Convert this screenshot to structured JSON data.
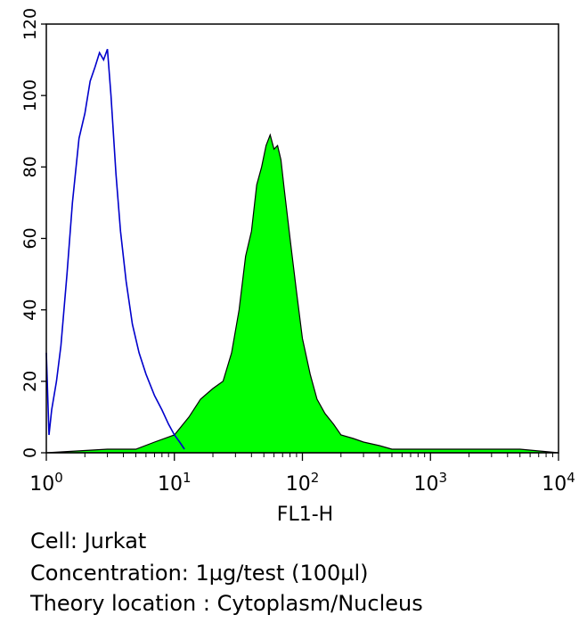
{
  "chart_data": {
    "type": "area",
    "xlabel": "FL1-H",
    "ylabel": "",
    "x_scale": "log",
    "xlim": [
      1,
      10000
    ],
    "ylim": [
      0,
      120
    ],
    "y_ticks": [
      0,
      20,
      40,
      60,
      80,
      100,
      120
    ],
    "x_ticks": [
      {
        "value": 1,
        "base": "10",
        "exp": "0"
      },
      {
        "value": 10,
        "base": "10",
        "exp": "1"
      },
      {
        "value": 100,
        "base": "10",
        "exp": "2"
      },
      {
        "value": 1000,
        "base": "10",
        "exp": "3"
      },
      {
        "value": 10000,
        "base": "10",
        "exp": "4"
      }
    ],
    "grid": false,
    "series": [
      {
        "style": "outline",
        "color": "#0000cc",
        "x": [
          1.0,
          1.05,
          1.1,
          1.2,
          1.3,
          1.45,
          1.6,
          1.8,
          2.0,
          2.2,
          2.4,
          2.6,
          2.8,
          3.0,
          3.2,
          3.5,
          3.8,
          4.2,
          4.7,
          5.3,
          6.0,
          7.0,
          8.0,
          9.0,
          10.0,
          11.0,
          12.0
        ],
        "y": [
          28,
          5,
          12,
          20,
          30,
          50,
          70,
          88,
          95,
          104,
          108,
          112,
          110,
          113,
          100,
          78,
          62,
          48,
          36,
          28,
          22,
          16,
          12,
          8,
          5,
          3,
          1
        ]
      },
      {
        "style": "filled",
        "color": "#00ff00",
        "edge_color": "#000000",
        "x": [
          1.0,
          3.0,
          5.0,
          7.0,
          10.0,
          13.0,
          16.0,
          20.0,
          24.0,
          28.0,
          32.0,
          36.0,
          40.0,
          44.0,
          48.0,
          52.0,
          56.0,
          60.0,
          64.0,
          68.0,
          72.0,
          80.0,
          90.0,
          100.0,
          115.0,
          130.0,
          150.0,
          175.0,
          200.0,
          250.0,
          300.0,
          400.0,
          500.0,
          700.0,
          1000.0,
          2000.0,
          5000.0,
          10000.0
        ],
        "y": [
          0,
          1,
          1,
          3,
          5,
          10,
          15,
          18,
          20,
          28,
          40,
          55,
          62,
          75,
          80,
          86,
          89,
          85,
          86,
          82,
          74,
          60,
          45,
          32,
          22,
          15,
          11,
          8,
          5,
          4,
          3,
          2,
          1,
          1,
          1,
          1,
          1,
          0
        ]
      }
    ]
  },
  "caption": {
    "cell": "Cell: Jurkat",
    "concentration": "Concentration: 1µg/test (100µl)",
    "location": "Theory location : Cytoplasm/Nucleus"
  }
}
